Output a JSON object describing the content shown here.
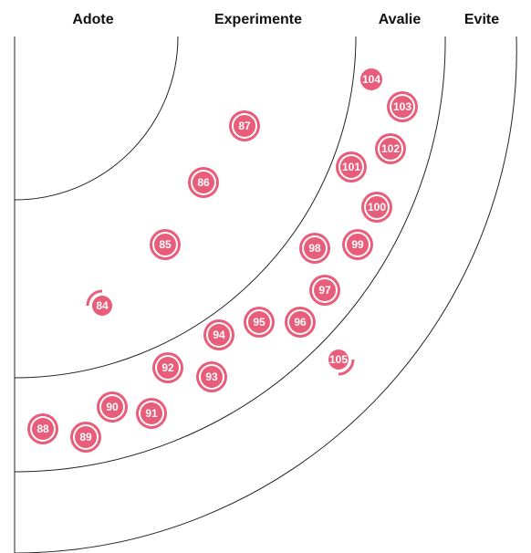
{
  "rings": [
    {
      "key": "adote",
      "label": "Adote"
    },
    {
      "key": "experimente",
      "label": "Experimente"
    },
    {
      "key": "avalie",
      "label": "Avalie"
    },
    {
      "key": "evite",
      "label": "Evite"
    }
  ],
  "colors": {
    "blip": "#e85e7a",
    "blip_ring": "#e85e7a",
    "gap": "#ffffff",
    "lines": "#222222",
    "label_text": "#111111"
  },
  "blips": [
    {
      "id": "84",
      "ring": "experimente",
      "marker": "new"
    },
    {
      "id": "85",
      "ring": "experimente",
      "marker": "unchanged"
    },
    {
      "id": "86",
      "ring": "experimente",
      "marker": "unchanged"
    },
    {
      "id": "87",
      "ring": "experimente",
      "marker": "unchanged"
    },
    {
      "id": "88",
      "ring": "avalie",
      "marker": "unchanged"
    },
    {
      "id": "89",
      "ring": "avalie",
      "marker": "unchanged"
    },
    {
      "id": "90",
      "ring": "avalie",
      "marker": "unchanged"
    },
    {
      "id": "91",
      "ring": "avalie",
      "marker": "unchanged"
    },
    {
      "id": "92",
      "ring": "experimente",
      "marker": "unchanged"
    },
    {
      "id": "93",
      "ring": "avalie",
      "marker": "unchanged"
    },
    {
      "id": "94",
      "ring": "experimente",
      "marker": "unchanged"
    },
    {
      "id": "95",
      "ring": "experimente",
      "marker": "unchanged"
    },
    {
      "id": "96",
      "ring": "experimente",
      "marker": "unchanged"
    },
    {
      "id": "97",
      "ring": "avalie",
      "marker": "unchanged"
    },
    {
      "id": "98",
      "ring": "experimente",
      "marker": "unchanged"
    },
    {
      "id": "99",
      "ring": "avalie",
      "marker": "unchanged"
    },
    {
      "id": "100",
      "ring": "avalie",
      "marker": "unchanged"
    },
    {
      "id": "101",
      "ring": "avalie",
      "marker": "unchanged"
    },
    {
      "id": "102",
      "ring": "avalie",
      "marker": "unchanged"
    },
    {
      "id": "103",
      "ring": "avalie",
      "marker": "unchanged"
    },
    {
      "id": "104",
      "ring": "avalie",
      "marker": "plain"
    },
    {
      "id": "105",
      "ring": "evite",
      "marker": "new"
    }
  ]
}
